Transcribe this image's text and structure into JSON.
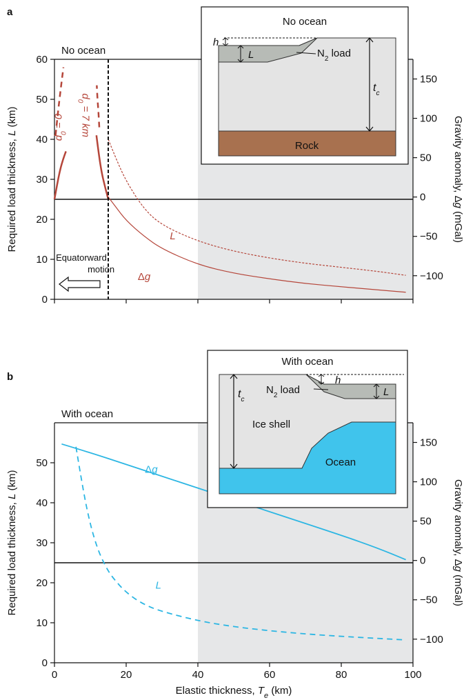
{
  "chart_data": [
    {
      "panel_label": "a",
      "type": "line",
      "panel_title": "No ocean",
      "xlim": [
        0,
        100
      ],
      "xticks": [
        0,
        20,
        40,
        60,
        80,
        100
      ],
      "show_x_tick_labels": false,
      "ylabel": "Required load thickness, L (km)",
      "ylim": [
        0,
        60
      ],
      "yticks": [
        0,
        10,
        20,
        30,
        40,
        50,
        60
      ],
      "y2label": "Gravity anomaly, Δg (mGal)",
      "y2lim": [
        -130,
        175
      ],
      "y2ticks": [
        -100,
        -50,
        0,
        50,
        100,
        150
      ],
      "shaded_x_range": [
        40,
        100
      ],
      "zero_anomaly_line_y": 25,
      "vertical_marker_x": 15,
      "equatorward_label": [
        "Equatorward",
        "motion"
      ],
      "series": [
        {
          "label": "d0 = 0",
          "label_html": "d<tspan baseline-shift=\"sub\" font-size=\"10\">0</tspan> = 0",
          "color": "#b5463a",
          "style": "dashed",
          "width": 2.5,
          "x": [
            0.3,
            1.0,
            1.8,
            2.5
          ],
          "y": [
            41,
            47,
            53,
            58
          ]
        },
        {
          "label": "",
          "color": "#b5463a",
          "style": "solid",
          "width": 2.5,
          "x": [
            0.0,
            0.8,
            1.6,
            2.4,
            3.2
          ],
          "y": [
            25,
            29,
            32.5,
            35,
            37
          ]
        },
        {
          "label": "d0 = 7 km",
          "label_html": "d<tspan baseline-shift=\"sub\" font-size=\"10\">0</tspan> = 7 km",
          "color": "#b5463a",
          "style": "dashed",
          "width": 2.5,
          "x": [
            12.5,
            12.3,
            12.0,
            11.8
          ],
          "y": [
            43,
            46.5,
            50,
            53.5
          ]
        },
        {
          "label": "",
          "color": "#b5463a",
          "style": "solid",
          "width": 2.5,
          "x": [
            11.7,
            12.4,
            13.2,
            14.0,
            15.0
          ],
          "y": [
            41,
            36,
            31.5,
            28.5,
            25
          ]
        },
        {
          "label": "L",
          "color": "#b5463a",
          "style": "dotted",
          "width": 1.2,
          "x": [
            15,
            17,
            20,
            25,
            30,
            40,
            50,
            60,
            70,
            80,
            90,
            98
          ],
          "y": [
            40,
            35.5,
            29.5,
            22.5,
            18.5,
            14.5,
            12.0,
            10.3,
            9.0,
            8.0,
            7.0,
            6.0
          ]
        },
        {
          "label": "Δg",
          "color": "#b5463a",
          "style": "solid",
          "width": 1.2,
          "x": [
            15,
            17,
            20,
            25,
            30,
            40,
            50,
            60,
            70,
            80,
            90,
            98
          ],
          "y2": [
            0,
            -12,
            -30,
            -50,
            -66,
            -86,
            -97,
            -104,
            -110,
            -114,
            -118,
            -121
          ]
        }
      ],
      "series_labels_pos": {
        "L": [
          33,
          15
        ],
        "Δg": [
          25,
          4.8
        ]
      },
      "inset": {
        "title": "No ocean",
        "labels": {
          "h": "h",
          "L": "L",
          "load_html": "N<tspan baseline-shift=\"sub\" font-size=\"10\">2</tspan> load",
          "tc_html": "t<tspan baseline-shift=\"sub\" font-size=\"10\">c</tspan>",
          "rock": "Rock"
        },
        "colors": {
          "shell": "#e4e4e4",
          "load": "#b7bbb6",
          "rock": "#a8714f"
        }
      }
    },
    {
      "panel_label": "b",
      "type": "line",
      "panel_title": "With ocean",
      "xlabel": "Elastic thickness, Te (km)",
      "xlabel_html": "Elastic thickness, <tspan font-style=\"italic\">T</tspan><tspan baseline-shift=\"sub\" font-size=\"11\" font-style=\"italic\">e</tspan> (km)",
      "xlim": [
        0,
        100
      ],
      "xticks": [
        0,
        20,
        40,
        60,
        80,
        100
      ],
      "show_x_tick_labels": true,
      "ylabel": "Required load thickness, L (km)",
      "ylim": [
        0,
        60
      ],
      "yticks": [
        0,
        10,
        20,
        30,
        40,
        50
      ],
      "y2label": "Gravity anomaly, Δg (mGal)",
      "y2lim": [
        -130,
        175
      ],
      "y2ticks": [
        -100,
        -50,
        0,
        50,
        100,
        150
      ],
      "shaded_x_range": [
        40,
        100
      ],
      "zero_anomaly_line_y": 25,
      "series": [
        {
          "label": "Δg",
          "color": "#2cb6e3",
          "style": "solid",
          "width": 1.8,
          "x": [
            2,
            10,
            20,
            30,
            40,
            50,
            60,
            70,
            80,
            90,
            98
          ],
          "y2": [
            148,
            137,
            122,
            107,
            92,
            77,
            62,
            47,
            32,
            16,
            1
          ]
        },
        {
          "label": "L",
          "color": "#2cb6e3",
          "style": "dashed",
          "width": 1.8,
          "x": [
            6,
            8,
            10,
            12,
            14,
            16,
            20,
            25,
            30,
            40,
            50,
            60,
            70,
            80,
            90,
            98
          ],
          "y": [
            54,
            43,
            34.5,
            28.5,
            24.5,
            21.5,
            17.5,
            14.5,
            12.8,
            10.5,
            9.0,
            8.0,
            7.2,
            6.6,
            6.1,
            5.7
          ]
        }
      ],
      "series_labels_pos": {
        "Δg": [
          27,
          47.5
        ],
        "L": [
          29,
          18.5
        ]
      },
      "inset": {
        "title": "With ocean",
        "labels": {
          "h": "h",
          "L": "L",
          "load_html": "N<tspan baseline-shift=\"sub\" font-size=\"10\">2</tspan> load",
          "tc_html": "t<tspan baseline-shift=\"sub\" font-size=\"10\">c</tspan>",
          "shell": "Ice shell",
          "ocean": "Ocean"
        },
        "colors": {
          "shell": "#e4e4e4",
          "load": "#b7bbb6",
          "ocean": "#40c4ec"
        }
      }
    }
  ]
}
